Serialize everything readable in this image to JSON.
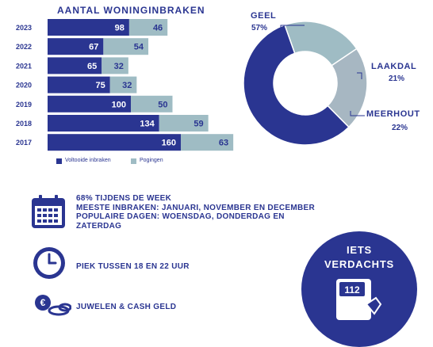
{
  "colors": {
    "primary": "#2a3591",
    "secondary": "#9fbcc4",
    "light": "#a7b7c2"
  },
  "chart_data": [
    {
      "type": "bar",
      "orientation": "horizontal",
      "stacked": true,
      "title": "AANTAL WONINGINBRAKEN",
      "categories": [
        "2023",
        "2022",
        "2021",
        "2020",
        "2019",
        "2018",
        "2017"
      ],
      "series": [
        {
          "name": "Voltooide inbraken",
          "values": [
            98,
            67,
            65,
            75,
            100,
            134,
            160
          ],
          "color": "#2a3591"
        },
        {
          "name": "Pogingen",
          "values": [
            46,
            54,
            32,
            32,
            50,
            59,
            63
          ],
          "color": "#9fbcc4"
        }
      ],
      "legend": "bottom"
    },
    {
      "type": "pie",
      "donut": true,
      "slices": [
        {
          "label": "GEEL",
          "value": 57,
          "pct": "57%",
          "color": "#2a3591"
        },
        {
          "label": "LAAKDAL",
          "value": 21,
          "pct": "21%",
          "color": "#9fbcc4"
        },
        {
          "label": "MEERHOUT",
          "value": 22,
          "pct": "22%",
          "color": "#a7b7c2"
        }
      ]
    }
  ],
  "facts": {
    "week": [
      "68% TIJDENS DE WEEK",
      "MEESTE INBRAKEN: JANUARI, NOVEMBER EN DECEMBER",
      "POPULAIRE DAGEN: WOENSDAG, DONDERDAG EN",
      "ZATERDAG"
    ],
    "peak": "PIEK TUSSEN 18 EN 22 UUR",
    "loot": "JUWELEN & CASH GELD"
  },
  "cta": {
    "line1": "IETS",
    "line2": "VERDACHTS",
    "phone": "112"
  },
  "icons": {
    "calendar": "calendar-icon",
    "clock": "clock-icon",
    "money": "money-icon",
    "phone": "phone-icon"
  }
}
